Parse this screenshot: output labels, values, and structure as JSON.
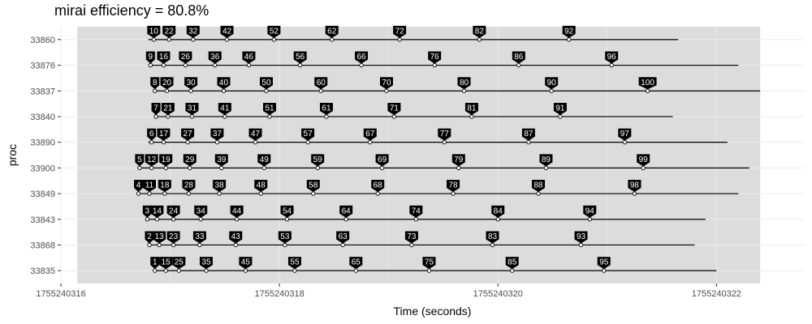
{
  "title": "mirai efficiency = 80.8%",
  "chart_data": {
    "type": "timeline",
    "title": "mirai efficiency = 80.8%",
    "xlabel": "Time (seconds)",
    "ylabel": "proc",
    "xlim": [
      1755240316.0,
      1755240322.8
    ],
    "x_ticks": [
      1755240316,
      1755240318,
      1755240320,
      1755240322
    ],
    "x_tick_labels": [
      "1755240316",
      "1755240318",
      "1755240320",
      "1755240322"
    ],
    "shaded_interval": [
      1755240316.15,
      1755240322.4
    ],
    "grid": true,
    "procs": [
      {
        "name": "33860",
        "start": 1755240316.8,
        "end": 1755240321.65,
        "tasks": [
          {
            "label": "10",
            "x": 1755240316.85
          },
          {
            "label": "22",
            "x": 1755240316.99
          },
          {
            "label": "32",
            "x": 1755240317.21
          },
          {
            "label": "42",
            "x": 1755240317.52
          },
          {
            "label": "52",
            "x": 1755240317.95
          },
          {
            "label": "62",
            "x": 1755240318.48
          },
          {
            "label": "72",
            "x": 1755240319.1
          },
          {
            "label": "82",
            "x": 1755240319.83
          },
          {
            "label": "92",
            "x": 1755240320.65
          }
        ]
      },
      {
        "name": "33876",
        "start": 1755240316.8,
        "end": 1755240322.2,
        "tasks": [
          {
            "label": "9",
            "x": 1755240316.82
          },
          {
            "label": "16",
            "x": 1755240316.94
          },
          {
            "label": "26",
            "x": 1755240317.14
          },
          {
            "label": "36",
            "x": 1755240317.41
          },
          {
            "label": "46",
            "x": 1755240317.72
          },
          {
            "label": "56",
            "x": 1755240318.19
          },
          {
            "label": "66",
            "x": 1755240318.75
          },
          {
            "label": "76",
            "x": 1755240319.42
          },
          {
            "label": "86",
            "x": 1755240320.19
          },
          {
            "label": "96",
            "x": 1755240321.04
          }
        ]
      },
      {
        "name": "33837",
        "start": 1755240316.85,
        "end": 1755240322.4,
        "tasks": [
          {
            "label": "8",
            "x": 1755240316.86
          },
          {
            "label": "20",
            "x": 1755240316.97
          },
          {
            "label": "30",
            "x": 1755240317.19
          },
          {
            "label": "40",
            "x": 1755240317.49
          },
          {
            "label": "50",
            "x": 1755240317.88
          },
          {
            "label": "60",
            "x": 1755240318.38
          },
          {
            "label": "70",
            "x": 1755240318.98
          },
          {
            "label": "80",
            "x": 1755240319.69
          },
          {
            "label": "90",
            "x": 1755240320.49
          },
          {
            "label": "100",
            "x": 1755240321.37
          }
        ]
      },
      {
        "name": "33840",
        "start": 1755240316.85,
        "end": 1755240321.6,
        "tasks": [
          {
            "label": "7",
            "x": 1755240316.87
          },
          {
            "label": "21",
            "x": 1755240316.98
          },
          {
            "label": "31",
            "x": 1755240317.2
          },
          {
            "label": "41",
            "x": 1755240317.5
          },
          {
            "label": "51",
            "x": 1755240317.91
          },
          {
            "label": "61",
            "x": 1755240318.43
          },
          {
            "label": "71",
            "x": 1755240319.05
          },
          {
            "label": "81",
            "x": 1755240319.76
          },
          {
            "label": "91",
            "x": 1755240320.57
          }
        ]
      },
      {
        "name": "33890",
        "start": 1755240316.8,
        "end": 1755240322.1,
        "tasks": [
          {
            "label": "6",
            "x": 1755240316.83
          },
          {
            "label": "17",
            "x": 1755240316.94
          },
          {
            "label": "27",
            "x": 1755240317.16
          },
          {
            "label": "37",
            "x": 1755240317.43
          },
          {
            "label": "47",
            "x": 1755240317.78
          },
          {
            "label": "57",
            "x": 1755240318.26
          },
          {
            "label": "67",
            "x": 1755240318.83
          },
          {
            "label": "77",
            "x": 1755240319.51
          },
          {
            "label": "87",
            "x": 1755240320.28
          },
          {
            "label": "97",
            "x": 1755240321.16
          }
        ]
      },
      {
        "name": "33900",
        "start": 1755240316.7,
        "end": 1755240322.3,
        "tasks": [
          {
            "label": "5",
            "x": 1755240316.72
          },
          {
            "label": "12",
            "x": 1755240316.83
          },
          {
            "label": "19",
            "x": 1755240316.96
          },
          {
            "label": "29",
            "x": 1755240317.18
          },
          {
            "label": "39",
            "x": 1755240317.47
          },
          {
            "label": "49",
            "x": 1755240317.86
          },
          {
            "label": "59",
            "x": 1755240318.35
          },
          {
            "label": "69",
            "x": 1755240318.94
          },
          {
            "label": "79",
            "x": 1755240319.64
          },
          {
            "label": "89",
            "x": 1755240320.44
          },
          {
            "label": "99",
            "x": 1755240321.33
          }
        ]
      },
      {
        "name": "33849",
        "start": 1755240316.7,
        "end": 1755240322.2,
        "tasks": [
          {
            "label": "4",
            "x": 1755240316.71
          },
          {
            "label": "11",
            "x": 1755240316.81
          },
          {
            "label": "18",
            "x": 1755240316.95
          },
          {
            "label": "28",
            "x": 1755240317.17
          },
          {
            "label": "38",
            "x": 1755240317.45
          },
          {
            "label": "48",
            "x": 1755240317.83
          },
          {
            "label": "58",
            "x": 1755240318.31
          },
          {
            "label": "68",
            "x": 1755240318.9
          },
          {
            "label": "78",
            "x": 1755240319.59
          },
          {
            "label": "88",
            "x": 1755240320.37
          },
          {
            "label": "98",
            "x": 1755240321.25
          }
        ]
      },
      {
        "name": "33843",
        "start": 1755240316.8,
        "end": 1755240321.9,
        "tasks": [
          {
            "label": "3",
            "x": 1755240316.79
          },
          {
            "label": "14",
            "x": 1755240316.88
          },
          {
            "label": "24",
            "x": 1755240317.03
          },
          {
            "label": "34",
            "x": 1755240317.28
          },
          {
            "label": "44",
            "x": 1755240317.61
          },
          {
            "label": "54",
            "x": 1755240318.07
          },
          {
            "label": "64",
            "x": 1755240318.61
          },
          {
            "label": "74",
            "x": 1755240319.25
          },
          {
            "label": "84",
            "x": 1755240320.0
          },
          {
            "label": "94",
            "x": 1755240320.84
          }
        ]
      },
      {
        "name": "33868",
        "start": 1755240316.8,
        "end": 1755240321.8,
        "tasks": [
          {
            "label": "2",
            "x": 1755240316.81
          },
          {
            "label": "13",
            "x": 1755240316.9
          },
          {
            "label": "23",
            "x": 1755240317.03
          },
          {
            "label": "33",
            "x": 1755240317.27
          },
          {
            "label": "43",
            "x": 1755240317.6
          },
          {
            "label": "53",
            "x": 1755240318.05
          },
          {
            "label": "63",
            "x": 1755240318.58
          },
          {
            "label": "73",
            "x": 1755240319.21
          },
          {
            "label": "83",
            "x": 1755240319.95
          },
          {
            "label": "93",
            "x": 1755240320.76
          }
        ]
      },
      {
        "name": "33835",
        "start": 1755240316.85,
        "end": 1755240322.0,
        "tasks": [
          {
            "label": "1",
            "x": 1755240316.86
          },
          {
            "label": "15",
            "x": 1755240316.96
          },
          {
            "label": "25",
            "x": 1755240317.08
          },
          {
            "label": "35",
            "x": 1755240317.33
          },
          {
            "label": "45",
            "x": 1755240317.69
          },
          {
            "label": "55",
            "x": 1755240318.14
          },
          {
            "label": "65",
            "x": 1755240318.7
          },
          {
            "label": "75",
            "x": 1755240319.37
          },
          {
            "label": "85",
            "x": 1755240320.13
          },
          {
            "label": "95",
            "x": 1755240320.97
          }
        ]
      }
    ]
  }
}
